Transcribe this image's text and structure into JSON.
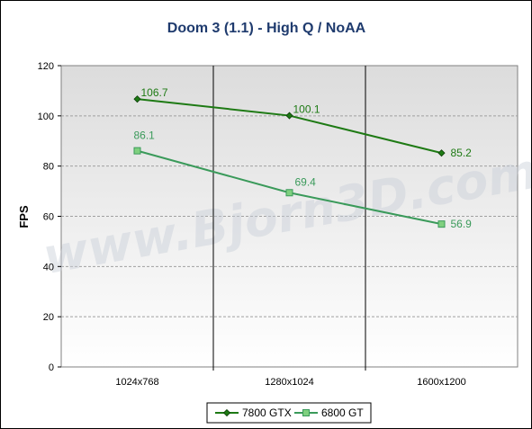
{
  "watermark": "www.Bjorn3D.com",
  "colors": {
    "plot_bg_top": "#dcdcdc",
    "plot_bg_bottom": "#ffffff",
    "grid": "#a0a0a0",
    "title": "#1f3b6e"
  },
  "chart_data": {
    "type": "line",
    "title": "Doom 3 (1.1) - High Q / NoAA",
    "xlabel": "",
    "ylabel": "FPS",
    "categories": [
      "1024x768",
      "1280x1024",
      "1600x1200"
    ],
    "ylim": [
      0,
      120
    ],
    "yticks": [
      0,
      20,
      40,
      60,
      80,
      100,
      120
    ],
    "grid": "horizontal dashed",
    "legend_position": "bottom",
    "series": [
      {
        "name": "7800 GTX",
        "values": [
          106.7,
          100.1,
          85.2
        ],
        "labels": [
          "106.7",
          "100.1",
          "85.2"
        ],
        "color": "#1e7a14",
        "marker": "diamond"
      },
      {
        "name": "6800 GT",
        "values": [
          86.1,
          69.4,
          56.9
        ],
        "labels": [
          "86.1",
          "69.4",
          "56.9"
        ],
        "color": "#3a9a5a",
        "marker": "square"
      }
    ]
  }
}
